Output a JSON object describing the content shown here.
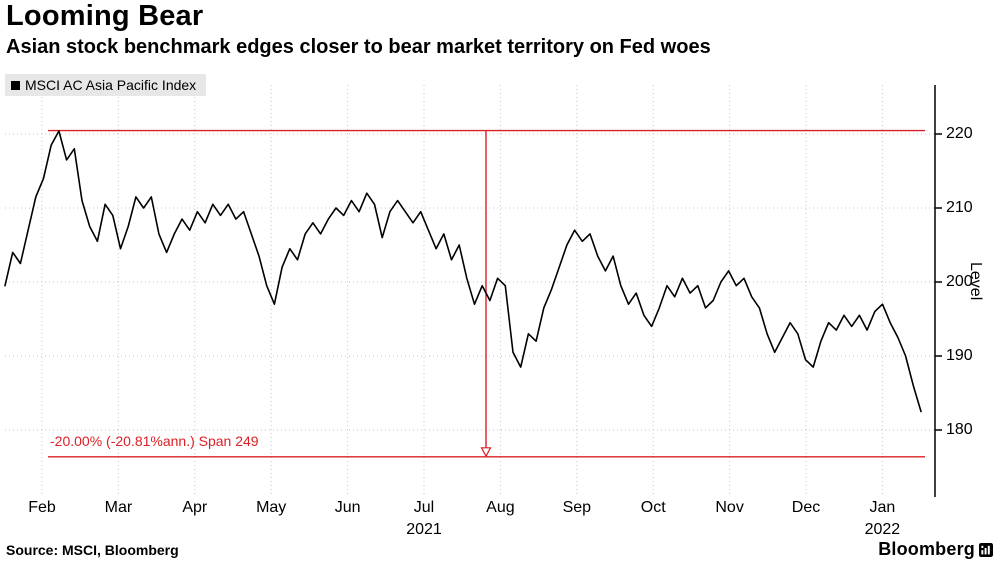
{
  "page": {
    "title": "Looming Bear",
    "subtitle": "Asian stock benchmark edges closer to bear market territory on Fed woes",
    "source_note": "Source: MSCI, Bloomberg",
    "brand": "Bloomberg"
  },
  "legend": {
    "label": "MSCI AC Asia Pacific Index",
    "marker_color": "#000000"
  },
  "chart_data": {
    "type": "line",
    "title": "Looming Bear",
    "subtitle": "Asian stock benchmark edges closer to bear market territory on Fed woes",
    "x_tick_labels": [
      "Feb",
      "Mar",
      "Apr",
      "May",
      "Jun",
      "Jul",
      "Aug",
      "Sep",
      "Oct",
      "Nov",
      "Dec",
      "Jan"
    ],
    "x_year_labels": [
      {
        "label": "2021",
        "month_index": 5
      },
      {
        "label": "2022",
        "month_index": 11
      }
    ],
    "y_ticks": [
      180,
      190,
      200,
      210,
      220
    ],
    "ylabel": "Level",
    "ylim": [
      171,
      226.5
    ],
    "grid": true,
    "legend_position": "top-left",
    "line_color": "#000000",
    "annotation_color": "#dc2026",
    "series": [
      {
        "name": "MSCI AC Asia Pacific Index",
        "values": [
          199.5,
          204,
          202.5,
          207,
          211.5,
          214,
          218.5,
          220.4,
          216.5,
          218,
          211,
          207.5,
          205.5,
          210.5,
          209,
          204.5,
          207.5,
          211.5,
          210,
          211.5,
          206.5,
          204,
          206.5,
          208.5,
          207,
          209.5,
          208,
          210.5,
          209,
          210.5,
          208.5,
          209.5,
          206.5,
          203.5,
          199.5,
          197,
          202,
          204.5,
          203,
          206.5,
          208,
          206.5,
          208.5,
          210,
          209,
          211,
          209.5,
          212,
          210.5,
          206,
          209.5,
          211,
          209.5,
          208,
          209.5,
          207,
          204.5,
          206.5,
          203,
          205,
          200.5,
          197,
          199.5,
          197.5,
          200.5,
          199.5,
          190.5,
          188.5,
          193,
          192,
          196.5,
          199,
          202,
          205,
          207,
          205.5,
          206.5,
          203.5,
          201.5,
          203.5,
          199.5,
          197,
          198.5,
          195.5,
          194,
          196.5,
          199.5,
          198,
          200.5,
          198.5,
          199.5,
          196.5,
          197.5,
          200,
          201.5,
          199.5,
          200.5,
          198,
          196.5,
          193,
          190.5,
          192.5,
          194.5,
          193,
          189.5,
          188.5,
          192,
          194.5,
          193.5,
          195.5,
          194,
          195.5,
          193.5,
          196,
          197,
          194.5,
          192.5,
          190,
          186,
          182.5
        ]
      }
    ],
    "annotations": {
      "peak_level": 220.47,
      "bear_level": 176.38,
      "drawdown_label": "-20.00% (-20.81%ann.) Span 249"
    }
  }
}
